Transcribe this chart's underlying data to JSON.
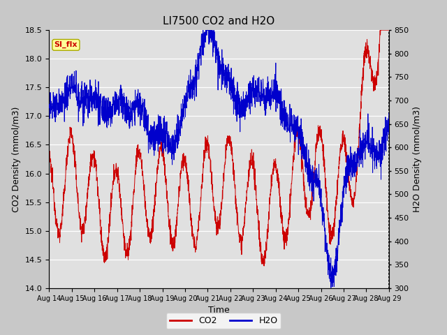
{
  "title": "LI7500 CO2 and H2O",
  "xlabel": "Time",
  "ylabel_left": "CO2 Density (mmol/m3)",
  "ylabel_right": "H2O Density (mmol/m3)",
  "co2_ylim": [
    14.0,
    18.5
  ],
  "h2o_ylim": [
    300,
    850
  ],
  "co2_yticks": [
    14.0,
    14.5,
    15.0,
    15.5,
    16.0,
    16.5,
    17.0,
    17.5,
    18.0,
    18.5
  ],
  "h2o_yticks": [
    300,
    350,
    400,
    450,
    500,
    550,
    600,
    650,
    700,
    750,
    800,
    850
  ],
  "xtick_labels": [
    "Aug 14",
    "Aug 15",
    "Aug 16",
    "Aug 17",
    "Aug 18",
    "Aug 19",
    "Aug 20",
    "Aug 21",
    "Aug 22",
    "Aug 23",
    "Aug 24",
    "Aug 25",
    "Aug 26",
    "Aug 27",
    "Aug 28",
    "Aug 29"
  ],
  "fig_bg_color": "#c8c8c8",
  "plot_bg_color": "#e0e0e0",
  "co2_color": "#cc0000",
  "h2o_color": "#0000cc",
  "legend_label_co2": "CO2",
  "legend_label_h2o": "H2O",
  "annotation_text": "SI_flx",
  "annotation_bg": "#ffff99",
  "annotation_border": "#aaaa00",
  "annotation_text_color": "#cc0000",
  "figsize": [
    6.4,
    4.8
  ],
  "dpi": 100
}
